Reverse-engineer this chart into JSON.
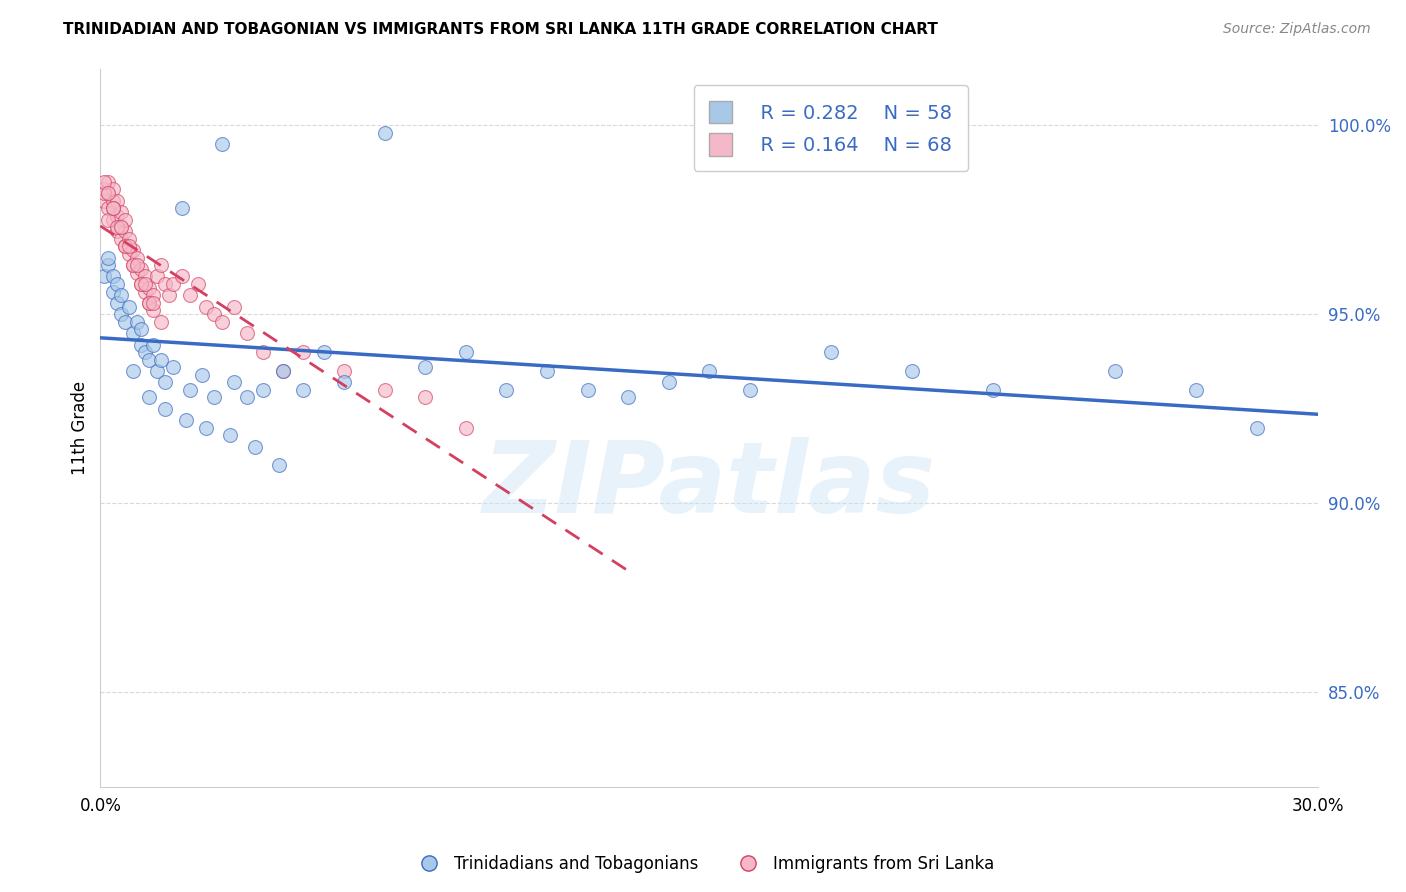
{
  "title": "TRINIDADIAN AND TOBAGONIAN VS IMMIGRANTS FROM SRI LANKA 11TH GRADE CORRELATION CHART",
  "source": "Source: ZipAtlas.com",
  "ylabel": "11th Grade",
  "xlim": [
    0.0,
    0.3
  ],
  "ylim": [
    0.825,
    1.015
  ],
  "yticks": [
    0.85,
    0.9,
    0.95,
    1.0
  ],
  "ytick_labels": [
    "85.0%",
    "90.0%",
    "95.0%",
    "100.0%"
  ],
  "xticks": [
    0.0,
    0.05,
    0.1,
    0.15,
    0.2,
    0.25,
    0.3
  ],
  "xtick_labels": [
    "0.0%",
    "",
    "",
    "",
    "",
    "",
    "30.0%"
  ],
  "blue_R": 0.282,
  "blue_N": 58,
  "pink_R": 0.164,
  "pink_N": 68,
  "blue_color": "#a8c8e8",
  "pink_color": "#f4b8c8",
  "blue_line_color": "#3a6bc4",
  "pink_line_color": "#d44060",
  "watermark": "ZIPatlas",
  "blue_scatter_x": [
    0.001,
    0.002,
    0.002,
    0.003,
    0.003,
    0.004,
    0.004,
    0.005,
    0.005,
    0.006,
    0.007,
    0.008,
    0.009,
    0.01,
    0.01,
    0.011,
    0.012,
    0.013,
    0.014,
    0.015,
    0.016,
    0.018,
    0.02,
    0.022,
    0.025,
    0.028,
    0.03,
    0.033,
    0.036,
    0.04,
    0.045,
    0.05,
    0.055,
    0.06,
    0.07,
    0.08,
    0.09,
    0.1,
    0.11,
    0.12,
    0.13,
    0.14,
    0.15,
    0.16,
    0.18,
    0.2,
    0.22,
    0.25,
    0.27,
    0.285,
    0.008,
    0.012,
    0.016,
    0.021,
    0.026,
    0.032,
    0.038,
    0.044
  ],
  "blue_scatter_y": [
    0.96,
    0.963,
    0.965,
    0.956,
    0.96,
    0.953,
    0.958,
    0.95,
    0.955,
    0.948,
    0.952,
    0.945,
    0.948,
    0.942,
    0.946,
    0.94,
    0.938,
    0.942,
    0.935,
    0.938,
    0.932,
    0.936,
    0.978,
    0.93,
    0.934,
    0.928,
    0.995,
    0.932,
    0.928,
    0.93,
    0.935,
    0.93,
    0.94,
    0.932,
    0.998,
    0.936,
    0.94,
    0.93,
    0.935,
    0.93,
    0.928,
    0.932,
    0.935,
    0.93,
    0.94,
    0.935,
    0.93,
    0.935,
    0.93,
    0.92,
    0.935,
    0.928,
    0.925,
    0.922,
    0.92,
    0.918,
    0.915,
    0.91
  ],
  "pink_scatter_x": [
    0.001,
    0.001,
    0.002,
    0.002,
    0.002,
    0.003,
    0.003,
    0.003,
    0.004,
    0.004,
    0.004,
    0.005,
    0.005,
    0.005,
    0.006,
    0.006,
    0.006,
    0.007,
    0.007,
    0.008,
    0.008,
    0.009,
    0.009,
    0.01,
    0.01,
    0.011,
    0.011,
    0.012,
    0.012,
    0.013,
    0.013,
    0.014,
    0.015,
    0.016,
    0.017,
    0.018,
    0.02,
    0.022,
    0.024,
    0.026,
    0.028,
    0.03,
    0.033,
    0.036,
    0.04,
    0.045,
    0.05,
    0.06,
    0.07,
    0.08,
    0.09,
    0.002,
    0.004,
    0.006,
    0.008,
    0.01,
    0.012,
    0.001,
    0.003,
    0.005,
    0.007,
    0.009,
    0.011,
    0.013,
    0.015,
    0.001,
    0.002,
    0.003
  ],
  "pink_scatter_y": [
    0.98,
    0.983,
    0.978,
    0.982,
    0.985,
    0.975,
    0.98,
    0.983,
    0.972,
    0.976,
    0.98,
    0.97,
    0.973,
    0.977,
    0.968,
    0.972,
    0.975,
    0.966,
    0.97,
    0.963,
    0.967,
    0.961,
    0.965,
    0.958,
    0.962,
    0.956,
    0.96,
    0.953,
    0.957,
    0.951,
    0.955,
    0.96,
    0.963,
    0.958,
    0.955,
    0.958,
    0.96,
    0.955,
    0.958,
    0.952,
    0.95,
    0.948,
    0.952,
    0.945,
    0.94,
    0.935,
    0.94,
    0.935,
    0.93,
    0.928,
    0.92,
    0.975,
    0.973,
    0.968,
    0.963,
    0.958,
    0.953,
    0.982,
    0.978,
    0.973,
    0.968,
    0.963,
    0.958,
    0.953,
    0.948,
    0.985,
    0.982,
    0.978
  ]
}
